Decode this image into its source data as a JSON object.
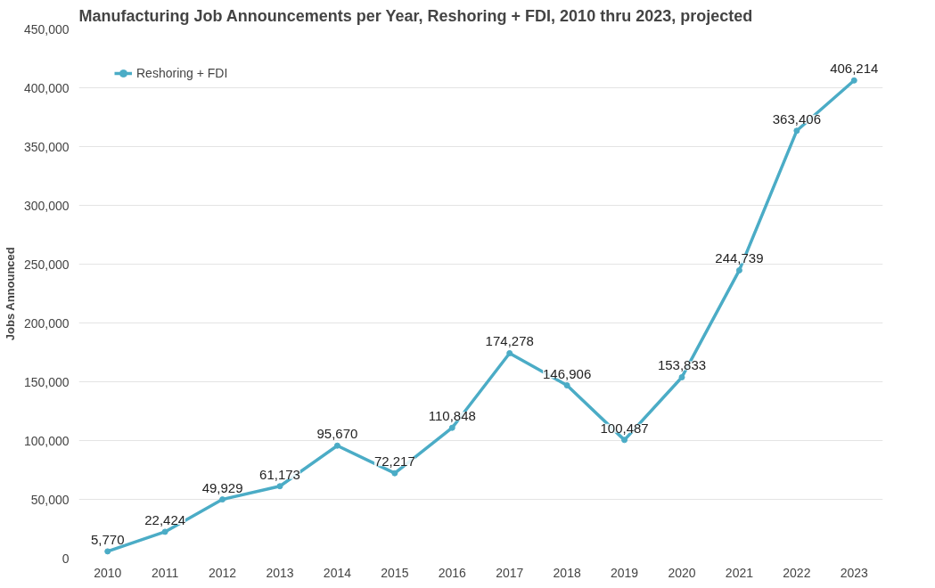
{
  "chart_data": {
    "type": "line",
    "title": "Manufacturing Job Announcements per Year, Reshoring + FDI, 2010 thru 2023, projected",
    "ylabel": "Jobs Announced",
    "categories": [
      "2010",
      "2011",
      "2012",
      "2013",
      "2014",
      "2015",
      "2016",
      "2017",
      "2018",
      "2019",
      "2020",
      "2021",
      "2022",
      "2023"
    ],
    "series": [
      {
        "name": "Reshoring + FDI",
        "color": "#4bacc6",
        "values": [
          5770,
          22424,
          49929,
          61173,
          95670,
          72217,
          110848,
          174278,
          146906,
          100487,
          153833,
          244739,
          363406,
          406214
        ],
        "value_labels": [
          "5,770",
          "22,424",
          "49,929",
          "61,173",
          "95,670",
          "72,217",
          "110,848",
          "174,278",
          "146,906",
          "100,487",
          "153,833",
          "244,739",
          "363,406",
          "406,214"
        ]
      }
    ],
    "ylim": [
      0,
      450000
    ],
    "yticks": [
      {
        "value": 0,
        "label": "0"
      },
      {
        "value": 50000,
        "label": "50,000"
      },
      {
        "value": 100000,
        "label": "100,000"
      },
      {
        "value": 150000,
        "label": "150,000"
      },
      {
        "value": 200000,
        "label": "200,000"
      },
      {
        "value": 250000,
        "label": "250,000"
      },
      {
        "value": 300000,
        "label": "300,000"
      },
      {
        "value": 350000,
        "label": "350,000"
      },
      {
        "value": 400000,
        "label": "400,000"
      },
      {
        "value": 450000,
        "label": "450,000"
      }
    ],
    "grid": "y",
    "legend": "top left",
    "marker": "circle",
    "line_style": "solid"
  }
}
